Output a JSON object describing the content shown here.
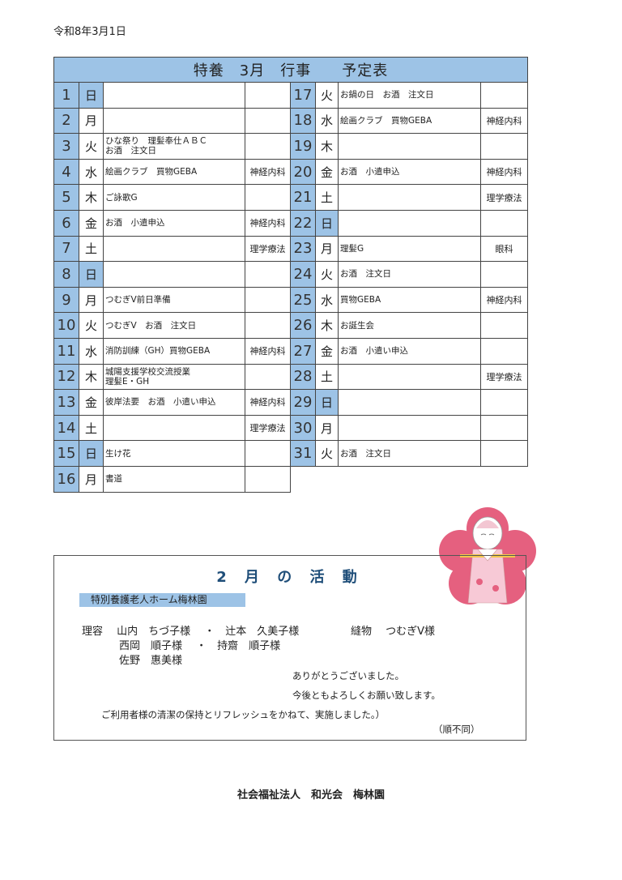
{
  "date": "令和8年3月1日",
  "schedule": {
    "title": "特養　3月　行事　　予定表",
    "left": [
      {
        "n": "1",
        "d": "日",
        "sun": true,
        "ev": "",
        "cl": ""
      },
      {
        "n": "2",
        "d": "月",
        "ev": "",
        "cl": ""
      },
      {
        "n": "3",
        "d": "火",
        "ev": "ひな祭り　理髪奉仕ＡＢＣ",
        "ev2": "お酒　注文日",
        "cl": ""
      },
      {
        "n": "4",
        "d": "水",
        "ev": "絵画クラブ　買物GEBA",
        "cl": "神経内科"
      },
      {
        "n": "5",
        "d": "木",
        "ev": "ご詠歌G",
        "cl": ""
      },
      {
        "n": "6",
        "d": "金",
        "ev": "お酒　小遣申込",
        "cl": "神経内科"
      },
      {
        "n": "7",
        "d": "土",
        "ev": "",
        "cl": "理学療法"
      },
      {
        "n": "8",
        "d": "日",
        "sun": true,
        "ev": "",
        "cl": ""
      },
      {
        "n": "9",
        "d": "月",
        "ev": "つむぎV前日準備",
        "cl": ""
      },
      {
        "n": "10",
        "d": "火",
        "ev": "つむぎV　お酒　注文日",
        "cl": ""
      },
      {
        "n": "11",
        "d": "水",
        "ev": "消防訓練（GH）買物GEBA",
        "cl": "神経内科"
      },
      {
        "n": "12",
        "d": "木",
        "ev": "城陽支援学校交流授業",
        "ev2": "理髪E・GH",
        "cl": ""
      },
      {
        "n": "13",
        "d": "金",
        "ev": "彼岸法要　お酒　小遣い申込",
        "cl": "神経内科"
      },
      {
        "n": "14",
        "d": "土",
        "ev": "",
        "cl": "理学療法"
      },
      {
        "n": "15",
        "d": "日",
        "sun": true,
        "ev": "生け花",
        "cl": ""
      },
      {
        "n": "16",
        "d": "月",
        "ev": "書道",
        "cl": ""
      }
    ],
    "right": [
      {
        "n": "17",
        "d": "火",
        "ev": "お鍋の日　お酒　注文日",
        "cl": ""
      },
      {
        "n": "18",
        "d": "水",
        "ev": "絵画クラブ　買物GEBA",
        "cl": "神経内科"
      },
      {
        "n": "19",
        "d": "木",
        "ev": "",
        "cl": ""
      },
      {
        "n": "20",
        "d": "金",
        "ev": "お酒　小遣申込",
        "cl": "神経内科"
      },
      {
        "n": "21",
        "d": "土",
        "ev": "",
        "cl": "理学療法"
      },
      {
        "n": "22",
        "d": "日",
        "sun": true,
        "ev": "",
        "cl": ""
      },
      {
        "n": "23",
        "d": "月",
        "ev": "理髪G",
        "cl": "眼科"
      },
      {
        "n": "24",
        "d": "火",
        "ev": "お酒　注文日",
        "cl": ""
      },
      {
        "n": "25",
        "d": "水",
        "ev": "買物GEBA",
        "cl": "神経内科"
      },
      {
        "n": "26",
        "d": "木",
        "ev": "お誕生会",
        "cl": ""
      },
      {
        "n": "27",
        "d": "金",
        "ev": "お酒　小遣い申込",
        "cl": ""
      },
      {
        "n": "28",
        "d": "土",
        "ev": "",
        "cl": "理学療法"
      },
      {
        "n": "29",
        "d": "日",
        "sun": true,
        "ev": "",
        "cl": ""
      },
      {
        "n": "30",
        "d": "月",
        "ev": "",
        "cl": ""
      },
      {
        "n": "31",
        "d": "火",
        "ev": "お酒　注文日",
        "cl": ""
      }
    ]
  },
  "activities": {
    "title": "2 月 の 活 動",
    "label": "特別養護老人ホーム梅林園",
    "line1": "理容　 山内　ちづ子様　 ・　辻本　久美子様",
    "line1b": "縫物　 つむぎV様",
    "line2": "西岡　順子様　 ・　持齋　順子様",
    "line3": "佐野　惠美様",
    "thanks1": "ありがとうございました。",
    "thanks2": "今後ともよろしくお願い致します。",
    "note": "ご利用者様の清潔の保持とリフレッシュをかねて、実施しました。）",
    "order": "（順不同）"
  },
  "colors": {
    "cell_blue": "#9dc3e6",
    "title_navy": "#1f4e79",
    "blossom": "#e5607f"
  },
  "illustration": "plum-blossom-doll",
  "footer": "社会福祉法人　和光会　梅林園"
}
